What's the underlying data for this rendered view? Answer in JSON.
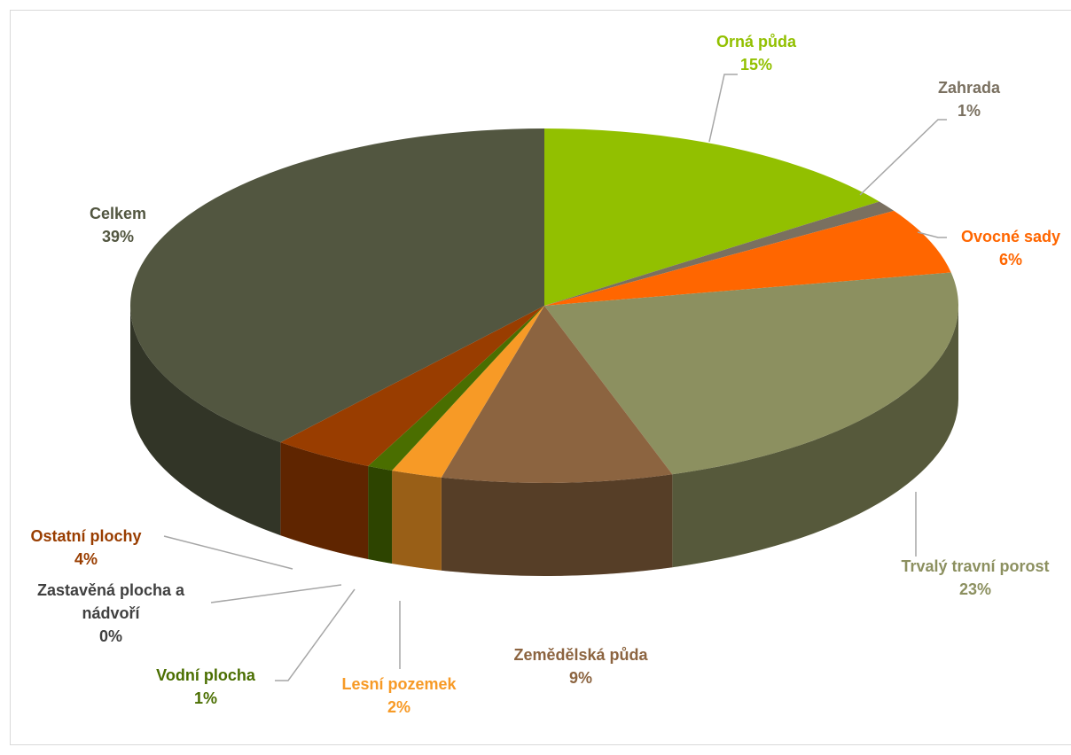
{
  "chart_data": {
    "type": "pie",
    "categories": [
      "Orná půda",
      "Zahrada",
      "Ovocné sady",
      "Trvalý travní porost",
      "Zemědělská půda",
      "Lesní pozemek",
      "Vodní plocha",
      "Zastavěná plocha a nádvoří",
      "Ostatní plochy",
      "Celkem"
    ],
    "values": [
      15,
      1,
      6,
      23,
      9,
      2,
      1,
      0,
      4,
      39
    ],
    "value_labels": [
      "15%",
      "1%",
      "6%",
      "23%",
      "9%",
      "2%",
      "1%",
      "0%",
      "4%",
      "39%"
    ],
    "colors": [
      "#92c000",
      "#7a7060",
      "#ff6600",
      "#8c9060",
      "#8c6440",
      "#f79a26",
      "#4a6e00",
      "#404040",
      "#993d00",
      "#525640"
    ]
  }
}
